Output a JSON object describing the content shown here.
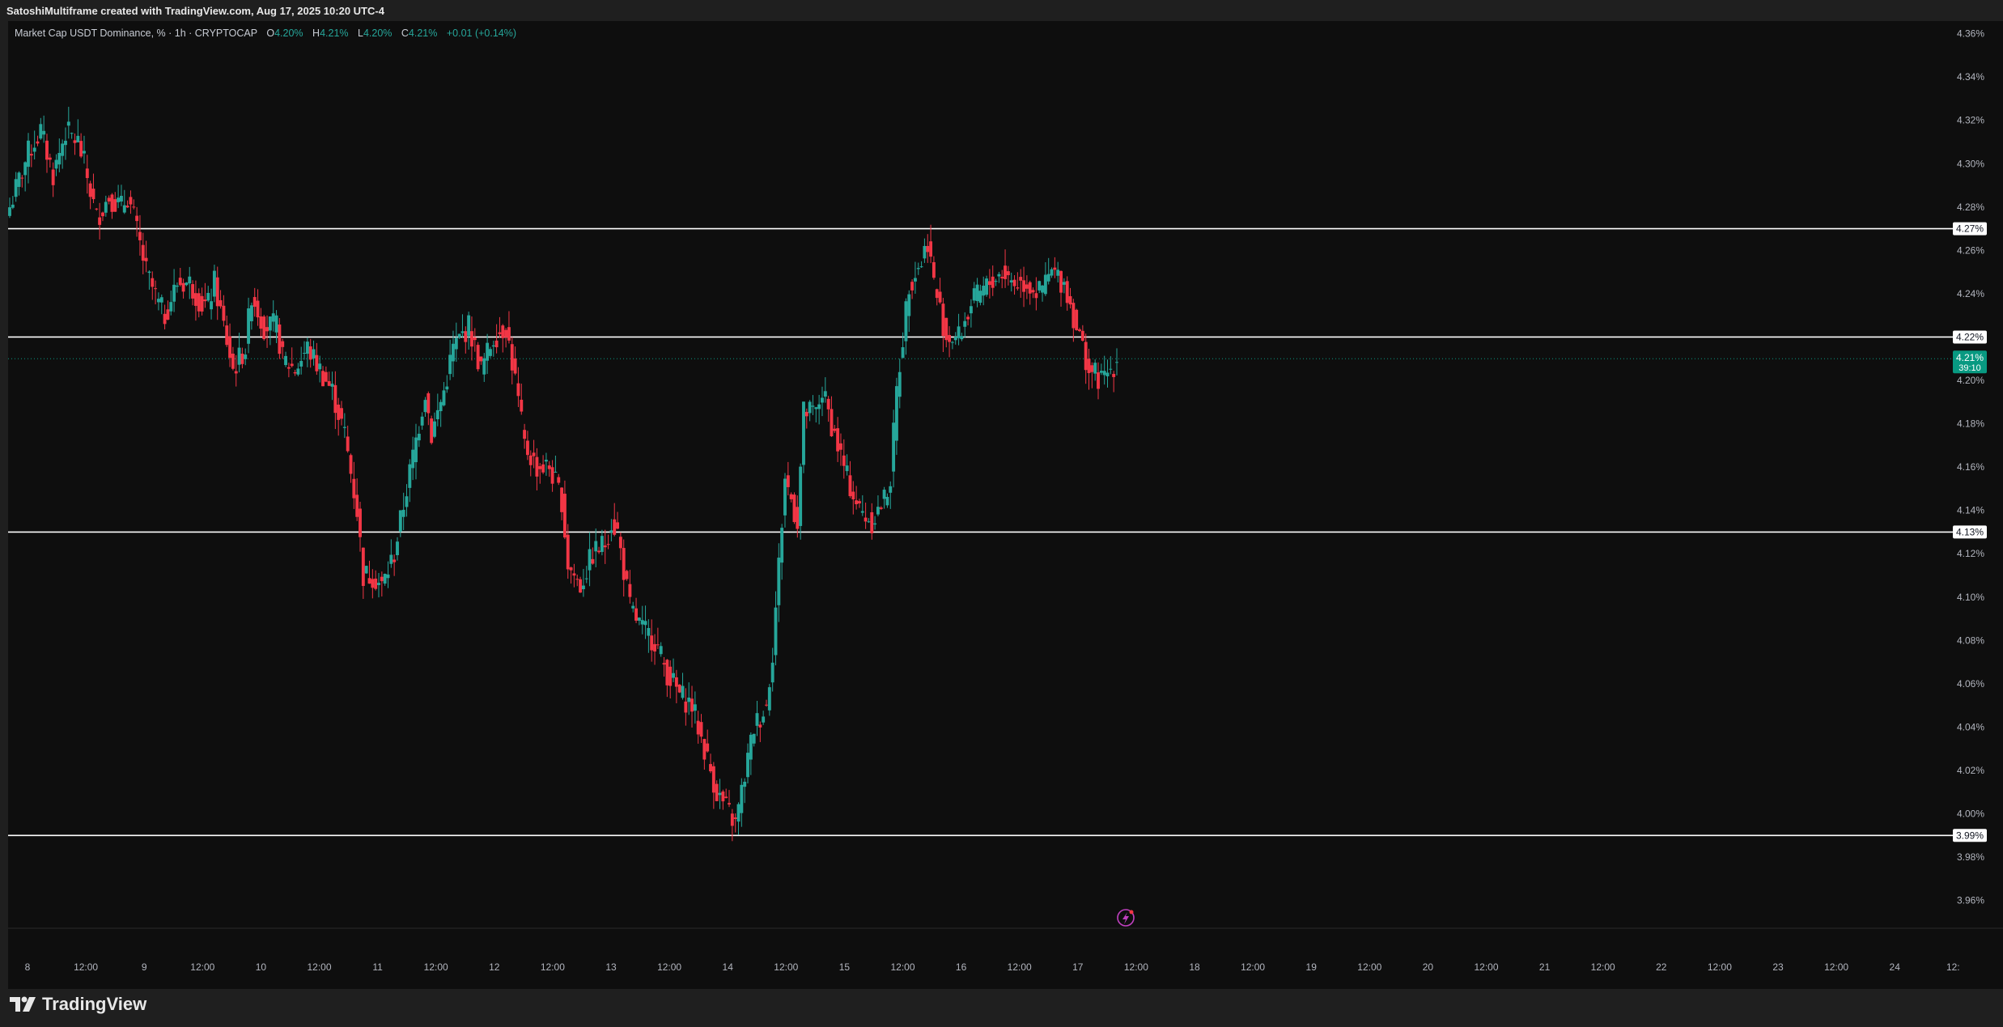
{
  "header": {
    "title": "SatoshiMultiframe created with TradingView.com, Aug 17, 2025 10:20 UTC-4"
  },
  "legend": {
    "symbol": "Market Cap USDT Dominance, % · 1h · CRYPTOCAP",
    "o_label": "O",
    "o_value": "4.20%",
    "h_label": "H",
    "h_value": "4.21%",
    "l_label": "L",
    "l_value": "4.20%",
    "c_label": "C",
    "c_value": "4.21%",
    "change": "+0.01 (+0.14%)"
  },
  "branding": {
    "logo_text": "TradingView"
  },
  "colors": {
    "up": "#26a69a",
    "down": "#f23645",
    "background": "#0e0e0e",
    "hline": "#ffffff",
    "price_tag": "#089981"
  },
  "price_tag": {
    "value": "4.21%",
    "countdown": "39:10"
  },
  "chart_data": {
    "type": "candlestick",
    "symbol": "USDT.D",
    "timeframe": "1h",
    "y_unit": "%",
    "ylim": [
      3.94,
      4.37
    ],
    "yticks": [
      "4.36%",
      "4.34%",
      "4.32%",
      "4.30%",
      "4.28%",
      "4.26%",
      "4.24%",
      "4.22%",
      "4.20%",
      "4.18%",
      "4.16%",
      "4.14%",
      "4.12%",
      "4.10%",
      "4.08%",
      "4.06%",
      "4.04%",
      "4.02%",
      "4.00%",
      "3.98%",
      "3.96%"
    ],
    "xticks": [
      "8",
      "12:00",
      "9",
      "12:00",
      "10",
      "12:00",
      "11",
      "12:00",
      "12",
      "12:00",
      "13",
      "12:00",
      "14",
      "12:00",
      "15",
      "12:00",
      "16",
      "12:00",
      "17",
      "12:00",
      "18",
      "12:00",
      "19",
      "12:00",
      "20",
      "12:00",
      "21",
      "12:00",
      "22",
      "12:00",
      "23",
      "12:00",
      "24",
      "12:"
    ],
    "horizontal_levels": [
      {
        "value": 4.27,
        "label": "4.27%"
      },
      {
        "value": 4.22,
        "label": "4.22%"
      },
      {
        "value": 4.13,
        "label": "4.13%"
      },
      {
        "value": 3.99,
        "label": "3.99%"
      }
    ],
    "last_price": 4.21,
    "path_points": [
      [
        0,
        4.28
      ],
      [
        6,
        4.305
      ],
      [
        10,
        4.315
      ],
      [
        14,
        4.295
      ],
      [
        18,
        4.315
      ],
      [
        22,
        4.31
      ],
      [
        24,
        4.3
      ],
      [
        28,
        4.275
      ],
      [
        32,
        4.285
      ],
      [
        36,
        4.28
      ],
      [
        38,
        4.285
      ],
      [
        40,
        4.275
      ],
      [
        44,
        4.25
      ],
      [
        48,
        4.235
      ],
      [
        50,
        4.23
      ],
      [
        54,
        4.245
      ],
      [
        58,
        4.245
      ],
      [
        62,
        4.235
      ],
      [
        64,
        4.235
      ],
      [
        66,
        4.245
      ],
      [
        69,
        4.225
      ],
      [
        72,
        4.205
      ],
      [
        76,
        4.215
      ],
      [
        78,
        4.24
      ],
      [
        82,
        4.225
      ],
      [
        86,
        4.225
      ],
      [
        88,
        4.21
      ],
      [
        92,
        4.205
      ],
      [
        96,
        4.215
      ],
      [
        100,
        4.205
      ],
      [
        104,
        4.195
      ],
      [
        108,
        4.175
      ],
      [
        112,
        4.14
      ],
      [
        114,
        4.11
      ],
      [
        117,
        4.11
      ],
      [
        120,
        4.105
      ],
      [
        124,
        4.12
      ],
      [
        126,
        4.135
      ],
      [
        130,
        4.165
      ],
      [
        134,
        4.195
      ],
      [
        136,
        4.175
      ],
      [
        140,
        4.195
      ],
      [
        143,
        4.215
      ],
      [
        148,
        4.225
      ],
      [
        152,
        4.205
      ],
      [
        156,
        4.22
      ],
      [
        160,
        4.225
      ],
      [
        163,
        4.2
      ],
      [
        166,
        4.17
      ],
      [
        170,
        4.16
      ],
      [
        174,
        4.16
      ],
      [
        178,
        4.145
      ],
      [
        180,
        4.115
      ],
      [
        184,
        4.105
      ],
      [
        188,
        4.12
      ],
      [
        192,
        4.125
      ],
      [
        194,
        4.135
      ],
      [
        196,
        4.13
      ],
      [
        200,
        4.095
      ],
      [
        204,
        4.085
      ],
      [
        208,
        4.08
      ],
      [
        212,
        4.065
      ],
      [
        216,
        4.055
      ],
      [
        220,
        4.05
      ],
      [
        224,
        4.03
      ],
      [
        228,
        4.01
      ],
      [
        232,
        4.0
      ],
      [
        234,
        3.995
      ],
      [
        236,
        4.01
      ],
      [
        240,
        4.04
      ],
      [
        244,
        4.05
      ],
      [
        246,
        4.075
      ],
      [
        250,
        4.155
      ],
      [
        254,
        4.135
      ],
      [
        256,
        4.185
      ],
      [
        260,
        4.185
      ],
      [
        262,
        4.195
      ],
      [
        266,
        4.175
      ],
      [
        270,
        4.155
      ],
      [
        274,
        4.14
      ],
      [
        278,
        4.135
      ],
      [
        282,
        4.145
      ],
      [
        284,
        4.155
      ],
      [
        286,
        4.195
      ],
      [
        290,
        4.245
      ],
      [
        294,
        4.255
      ],
      [
        296,
        4.265
      ],
      [
        298,
        4.245
      ],
      [
        302,
        4.22
      ],
      [
        306,
        4.22
      ],
      [
        310,
        4.235
      ],
      [
        316,
        4.245
      ],
      [
        320,
        4.25
      ],
      [
        324,
        4.245
      ],
      [
        328,
        4.245
      ],
      [
        332,
        4.24
      ],
      [
        336,
        4.25
      ],
      [
        340,
        4.245
      ],
      [
        344,
        4.225
      ],
      [
        348,
        4.205
      ],
      [
        352,
        4.2
      ],
      [
        355,
        4.205
      ],
      [
        357,
        4.21
      ]
    ]
  }
}
